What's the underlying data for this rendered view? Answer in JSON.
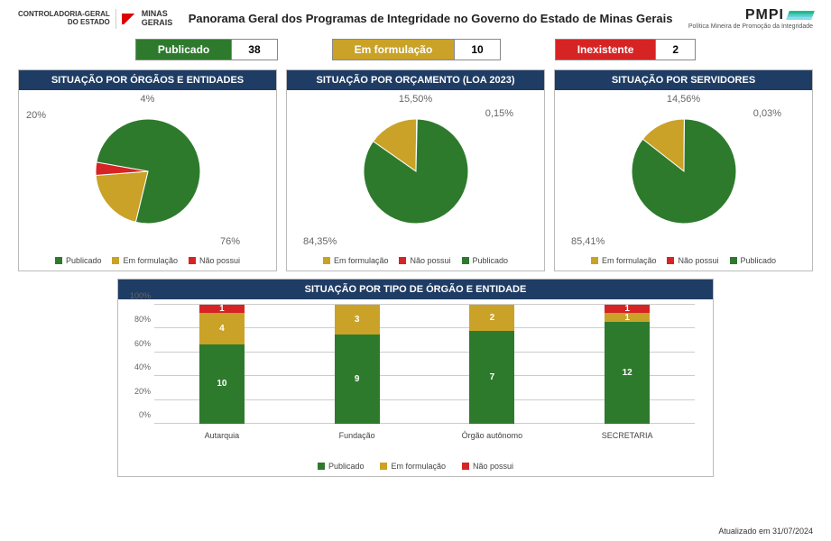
{
  "header": {
    "left_top": "CONTROLADORIA-GERAL",
    "left_bottom": "DO ESTADO",
    "mg_top": "MINAS",
    "mg_bottom": "GERAIS",
    "title": "Panorama Geral dos Programas de Integridade no Governo do Estado de Minas Gerais",
    "right_label": "PMPI",
    "right_sub": "Política Mineira de Promoção da Integridade"
  },
  "colors": {
    "publicado": "#2d7a2d",
    "em_formulacao": "#c9a227",
    "inexistente": "#d62424",
    "panel_header": "#1f3c64",
    "grid": "#cccccc",
    "text_muted": "#666666"
  },
  "status": {
    "items": [
      {
        "label": "Publicado",
        "value": "38",
        "color": "#2d7a2d"
      },
      {
        "label": "Em formulação",
        "value": "10",
        "color": "#c9a227"
      },
      {
        "label": "Inexistente",
        "value": "2",
        "color": "#d62424"
      }
    ]
  },
  "pies": [
    {
      "title": "SITUAÇÃO POR ÓRGÃOS E ENTIDADES",
      "slices": [
        {
          "name": "Publicado",
          "pct": 76,
          "color": "#2d7a2d",
          "label": "76%",
          "label_pos": "br"
        },
        {
          "name": "Em formulação",
          "pct": 20,
          "color": "#c9a227",
          "label": "20%",
          "label_pos": "tl"
        },
        {
          "name": "Não possui",
          "pct": 4,
          "color": "#d62424",
          "label": "4%",
          "label_pos": "t"
        }
      ],
      "legend_order": [
        "Publicado",
        "Em formulação",
        "Não possui"
      ],
      "start_angle": -80
    },
    {
      "title": "SITUAÇÃO POR ORÇAMENTO (LOA 2023)",
      "slices": [
        {
          "name": "Em formulação",
          "pct": 15.5,
          "color": "#c9a227",
          "label": "15,50%",
          "label_pos": "t"
        },
        {
          "name": "Não possui",
          "pct": 0.15,
          "color": "#d62424",
          "label": "0,15%",
          "label_pos": "tr"
        },
        {
          "name": "Publicado",
          "pct": 84.35,
          "color": "#2d7a2d",
          "label": "84,35%",
          "label_pos": "bl"
        }
      ],
      "legend_order": [
        "Em formulação",
        "Não possui",
        "Publicado"
      ],
      "start_angle": -55
    },
    {
      "title": "SITUAÇÃO POR SERVIDORES",
      "slices": [
        {
          "name": "Em formulação",
          "pct": 14.56,
          "color": "#c9a227",
          "label": "14,56%",
          "label_pos": "t"
        },
        {
          "name": "Não possui",
          "pct": 0.03,
          "color": "#d62424",
          "label": "0,03%",
          "label_pos": "tr"
        },
        {
          "name": "Publicado",
          "pct": 85.41,
          "color": "#2d7a2d",
          "label": "85,41%",
          "label_pos": "bl"
        }
      ],
      "legend_order": [
        "Em formulação",
        "Não possui",
        "Publicado"
      ],
      "start_angle": -52
    }
  ],
  "bar_chart": {
    "title": "SITUAÇÃO POR TIPO DE ÓRGÃO E ENTIDADE",
    "ylim_max": 100,
    "ytick_step": 20,
    "ytick_suffix": "%",
    "categories": [
      "Autarquia",
      "Fundação",
      "Órgão autônomo",
      "SECRETARIA"
    ],
    "series": [
      {
        "name": "Publicado",
        "color": "#2d7a2d"
      },
      {
        "name": "Em formulação",
        "color": "#c9a227"
      },
      {
        "name": "Não possui",
        "color": "#d62424"
      }
    ],
    "stacks": [
      {
        "values": [
          10,
          4,
          1
        ],
        "heights_pct": [
          66.7,
          26.6,
          6.7
        ]
      },
      {
        "values": [
          9,
          3,
          0
        ],
        "heights_pct": [
          75.0,
          25.0,
          0.0
        ]
      },
      {
        "values": [
          7,
          2,
          0
        ],
        "heights_pct": [
          77.8,
          22.2,
          0.0
        ]
      },
      {
        "values": [
          12,
          1,
          1
        ],
        "heights_pct": [
          85.7,
          7.15,
          7.15
        ]
      }
    ],
    "legend": [
      "Publicado",
      "Em formulação",
      "Não possui"
    ]
  },
  "footer": "Atualizado em 31/07/2024"
}
